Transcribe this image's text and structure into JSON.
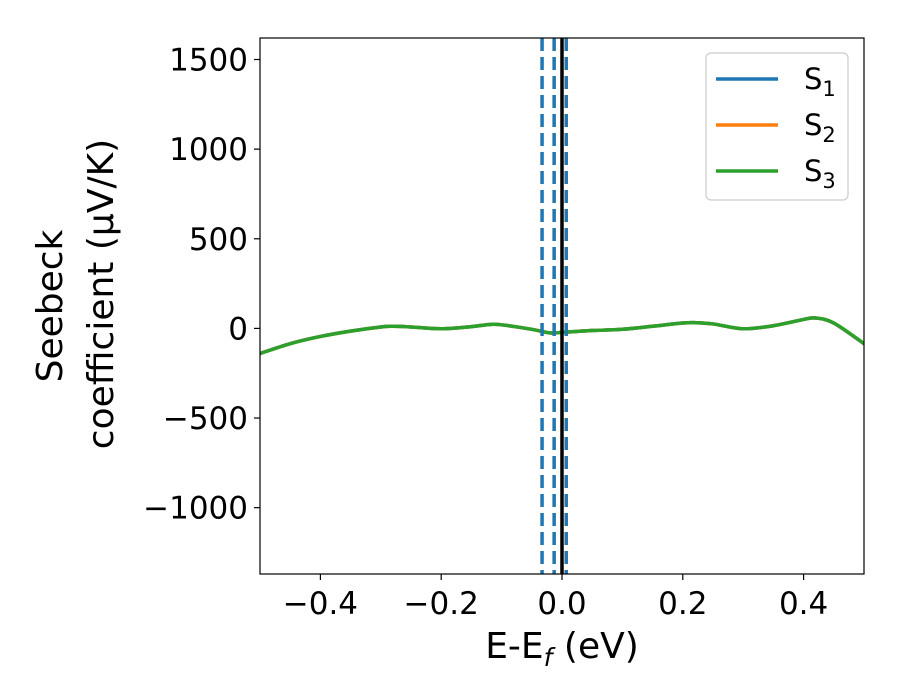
{
  "chart_data": {
    "type": "line",
    "title": "",
    "xlabel": "E-E",
    "xlabel_sub": "f",
    "xlabel_suffix": " (eV)",
    "ylabel_line1": "Seebeck",
    "ylabel_line2": "coefficient  (μV/K)",
    "xlim": [
      -0.5,
      0.5
    ],
    "ylim": [
      -1370,
      1620
    ],
    "xticks": [
      -0.4,
      -0.2,
      0.0,
      0.2,
      0.4
    ],
    "xtick_labels": [
      "−0.4",
      "−0.2",
      "0.0",
      "0.2",
      "0.4"
    ],
    "yticks": [
      -1000,
      -500,
      0,
      500,
      1000,
      1500
    ],
    "ytick_labels": [
      "−1000",
      "−500",
      "0",
      "500",
      "1000",
      "1500"
    ],
    "grid": false,
    "legend_position": "top-right",
    "series": [
      {
        "name": "S",
        "name_sub": "1",
        "color": "#1f77b4",
        "x": [
          -0.5,
          -0.45,
          -0.4,
          -0.35,
          -0.3,
          -0.28,
          -0.25,
          -0.2,
          -0.15,
          -0.12,
          -0.1,
          -0.05,
          -0.02,
          0.0,
          0.02,
          0.05,
          0.1,
          0.15,
          0.2,
          0.22,
          0.25,
          0.3,
          0.35,
          0.4,
          0.42,
          0.45,
          0.5
        ],
        "y": [
          -140,
          -85,
          -45,
          -15,
          8,
          12,
          8,
          -2,
          10,
          22,
          20,
          -5,
          -25,
          -22,
          -18,
          -12,
          -5,
          12,
          30,
          32,
          25,
          -2,
          15,
          50,
          58,
          30,
          -85
        ]
      },
      {
        "name": "S",
        "name_sub": "2",
        "color": "#ff7f0e",
        "x": [
          -0.5,
          -0.45,
          -0.4,
          -0.35,
          -0.3,
          -0.28,
          -0.25,
          -0.2,
          -0.15,
          -0.12,
          -0.1,
          -0.05,
          -0.02,
          0.0,
          0.02,
          0.05,
          0.1,
          0.15,
          0.2,
          0.22,
          0.25,
          0.3,
          0.35,
          0.4,
          0.42,
          0.45,
          0.5
        ],
        "y": [
          -140,
          -85,
          -45,
          -15,
          8,
          12,
          8,
          -2,
          10,
          22,
          20,
          -5,
          -25,
          -22,
          -18,
          -12,
          -5,
          12,
          30,
          32,
          25,
          -2,
          15,
          50,
          58,
          30,
          -85
        ]
      },
      {
        "name": "S",
        "name_sub": "3",
        "color": "#2ca02c",
        "x": [
          -0.5,
          -0.45,
          -0.4,
          -0.35,
          -0.3,
          -0.28,
          -0.25,
          -0.2,
          -0.15,
          -0.12,
          -0.1,
          -0.05,
          -0.02,
          0.0,
          0.02,
          0.05,
          0.1,
          0.15,
          0.2,
          0.22,
          0.25,
          0.3,
          0.35,
          0.4,
          0.42,
          0.45,
          0.5
        ],
        "y": [
          -140,
          -85,
          -45,
          -15,
          8,
          12,
          8,
          -2,
          10,
          22,
          20,
          -5,
          -25,
          -22,
          -18,
          -12,
          -5,
          12,
          30,
          32,
          25,
          -2,
          15,
          50,
          58,
          30,
          -85
        ]
      }
    ],
    "vertical_lines": [
      {
        "x": -0.033,
        "color": "#1f77b4",
        "style": "dashed"
      },
      {
        "x": -0.013,
        "color": "#1f77b4",
        "style": "dashed"
      },
      {
        "x": 0.0,
        "color": "#000000",
        "style": "solid"
      },
      {
        "x": 0.007,
        "color": "#1f77b4",
        "style": "dashed"
      }
    ]
  }
}
